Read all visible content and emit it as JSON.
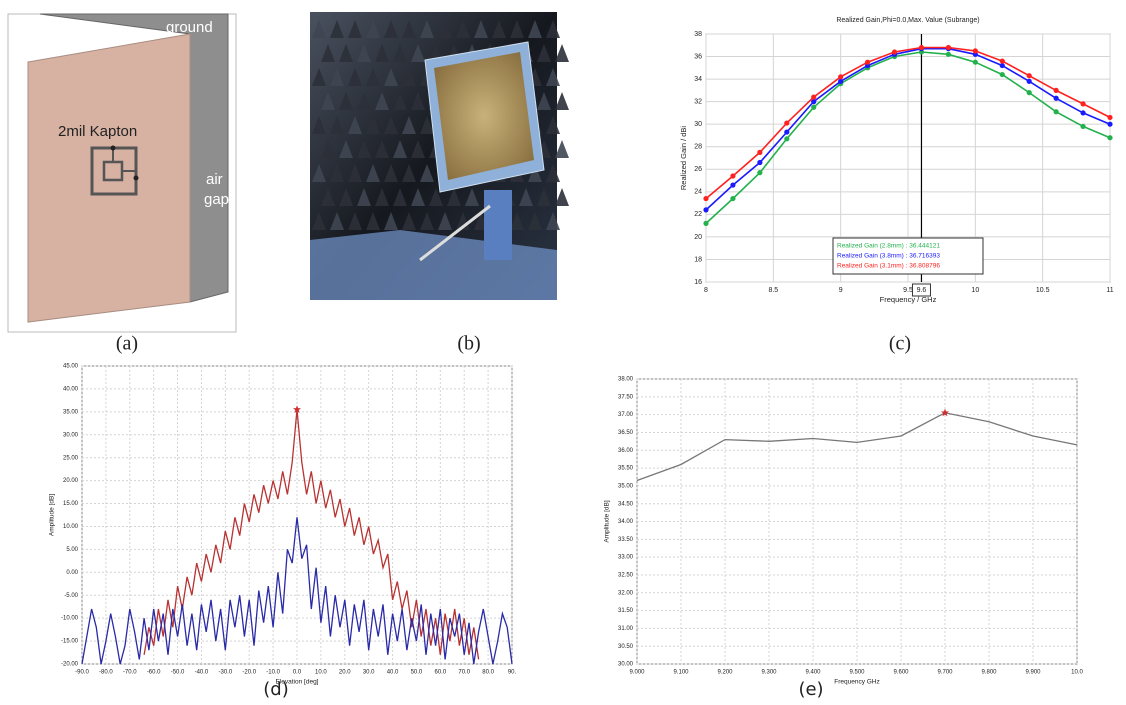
{
  "figure_a": {
    "labels": [
      "ground",
      "2mil Kapton",
      "air",
      "gap"
    ]
  },
  "captions": [
    "(a)",
    "(b)",
    "(c)",
    "(d)",
    "(e)"
  ],
  "chart_data": [
    {
      "type": "line",
      "title": "Realized Gain,Phi=0.0,Max. Value (Subrange)",
      "x_label": "Frequency / GHz",
      "y_label": "Realized Gain / dBi",
      "x": [
        8,
        8.2,
        8.4,
        8.6,
        8.8,
        9,
        9.2,
        9.4,
        9.6,
        9.8,
        10,
        10.2,
        10.4,
        10.6,
        10.8,
        11
      ],
      "series": [
        {
          "name": "Realized Gain (2.8mm) : 36.444121",
          "color": "#22b14c",
          "values": [
            21.2,
            23.4,
            25.7,
            28.7,
            31.5,
            33.6,
            35.0,
            36.0,
            36.4,
            36.2,
            35.5,
            34.4,
            32.8,
            31.1,
            29.8,
            28.8
          ]
        },
        {
          "name": "Realized Gain (3.8mm) : 36.716393",
          "color": "#1a1aff",
          "values": [
            22.4,
            24.6,
            26.6,
            29.3,
            32.0,
            33.8,
            35.2,
            36.2,
            36.7,
            36.7,
            36.2,
            35.2,
            33.8,
            32.3,
            31.0,
            30.0
          ]
        },
        {
          "name": "Realized Gain (3.1mm) : 36.808796",
          "color": "#ff2020",
          "values": [
            23.4,
            25.4,
            27.5,
            30.1,
            32.4,
            34.2,
            35.5,
            36.4,
            36.8,
            36.8,
            36.5,
            35.6,
            34.3,
            33.0,
            31.8,
            30.6
          ]
        }
      ],
      "xlim": [
        8,
        11
      ],
      "xticks": [
        8,
        8.5,
        9,
        9.5,
        10,
        10.5,
        11
      ],
      "ylim": [
        16,
        38
      ],
      "yticks": [
        16,
        18,
        20,
        22,
        24,
        26,
        28,
        30,
        32,
        34,
        36,
        38
      ],
      "grid": true,
      "markers": true,
      "legend": "bottom-center",
      "cursor_x": 9.6
    },
    {
      "type": "line",
      "x_label": "Elevation [deg]",
      "y_label": "Amplitude [dB]",
      "x": [
        -90,
        -88,
        -86,
        -84,
        -82,
        -80,
        -78,
        -76,
        -74,
        -72,
        -70,
        -68,
        -66,
        -64,
        -62,
        -60,
        -58,
        -56,
        -54,
        -52,
        -50,
        -48,
        -46,
        -44,
        -42,
        -40,
        -38,
        -36,
        -34,
        -32,
        -30,
        -28,
        -26,
        -24,
        -22,
        -20,
        -18,
        -16,
        -14,
        -12,
        -10,
        -8,
        -6,
        -4,
        -2,
        0,
        2,
        4,
        6,
        8,
        10,
        12,
        14,
        16,
        18,
        20,
        22,
        24,
        26,
        28,
        30,
        32,
        34,
        36,
        38,
        40,
        42,
        44,
        46,
        48,
        50,
        52,
        54,
        56,
        58,
        60,
        62,
        64,
        66,
        68,
        70,
        72,
        74,
        76,
        78,
        80,
        82,
        84,
        86,
        88,
        90
      ],
      "series": [
        {
          "color": "#b83232",
          "values": [
            null,
            null,
            null,
            null,
            null,
            null,
            null,
            null,
            null,
            null,
            null,
            null,
            null,
            -18,
            -12,
            -16,
            -8,
            -14,
            -6,
            -12,
            -3,
            -8,
            -1,
            -5,
            2,
            -2,
            4,
            0,
            6,
            2,
            9,
            5,
            12,
            8,
            15,
            11,
            17,
            13,
            19,
            15,
            20,
            16,
            22,
            17,
            24,
            35.5,
            24,
            17,
            22,
            15,
            20,
            14,
            18,
            12,
            16,
            10,
            14,
            8,
            12,
            6,
            10,
            4,
            7,
            1,
            4,
            -6,
            -2,
            -8,
            -4,
            -12,
            -6,
            -14,
            -8,
            -16,
            -10,
            -18,
            -9,
            -15,
            -8,
            -16,
            -10,
            -18,
            -12,
            -19,
            null,
            null,
            null,
            null,
            null,
            null,
            null
          ]
        },
        {
          "color": "#2a2aa8",
          "values": [
            -20,
            -14,
            -8,
            -12,
            -20,
            -15,
            -9,
            -14,
            -20,
            -16,
            -8,
            -13,
            -19,
            -10,
            -17,
            -8,
            -15,
            -9,
            -18,
            -8,
            -14,
            -7,
            -16,
            -9,
            -17,
            -7,
            -13,
            -6,
            -15,
            -8,
            -17,
            -6,
            -12,
            -5,
            -14,
            -6,
            -16,
            -4,
            -11,
            -3,
            -12,
            0,
            -9,
            5,
            2,
            12,
            3,
            6,
            -8,
            1,
            -11,
            -3,
            -14,
            -5,
            -12,
            -6,
            -16,
            -7,
            -13,
            -6,
            -17,
            -8,
            -14,
            -7,
            -18,
            -9,
            -15,
            -8,
            -17,
            -10,
            -15,
            -7,
            -18,
            -9,
            -16,
            -8,
            -19,
            -10,
            -14,
            -9,
            -18,
            -11,
            -20,
            -13,
            -8,
            -14,
            -20,
            -15,
            -9,
            -12,
            -20
          ]
        }
      ],
      "xlim": [
        -90,
        90
      ],
      "xticks": [
        {
          "value": -90,
          "label": "-90.0"
        },
        {
          "value": -80,
          "label": "-80.0"
        },
        {
          "value": -70,
          "label": "-70.0"
        },
        {
          "value": -60,
          "label": "-60.0"
        },
        {
          "value": -50,
          "label": "-50.0"
        },
        {
          "value": -40,
          "label": "-40.0"
        },
        {
          "value": -30,
          "label": "-30.0"
        },
        {
          "value": -20,
          "label": "-20.0"
        },
        {
          "value": -10,
          "label": "-10.0"
        },
        {
          "value": 0,
          "label": "0.0"
        },
        {
          "value": 10,
          "label": "10.0"
        },
        {
          "value": 20,
          "label": "20.0"
        },
        {
          "value": 30,
          "label": "30.0"
        },
        {
          "value": 40,
          "label": "40.0"
        },
        {
          "value": 50,
          "label": "50.0"
        },
        {
          "value": 60,
          "label": "60.0"
        },
        {
          "value": 70,
          "label": "70.0"
        },
        {
          "value": 80,
          "label": "80.0"
        },
        {
          "value": 90,
          "label": "90."
        }
      ],
      "ylim": [
        -20,
        45
      ],
      "yticks": [
        {
          "value": -20,
          "label": "-20.00"
        },
        {
          "value": -15,
          "label": "-15.00"
        },
        {
          "value": -10,
          "label": "-10.00"
        },
        {
          "value": -5,
          "label": "-5.00"
        },
        {
          "value": 0,
          "label": "0.00"
        },
        {
          "value": 5,
          "label": "5.00"
        },
        {
          "value": 10,
          "label": "10.00"
        },
        {
          "value": 15,
          "label": "15.00"
        },
        {
          "value": 20,
          "label": "20.00"
        },
        {
          "value": 25,
          "label": "25.00"
        },
        {
          "value": 30,
          "label": "30.00"
        },
        {
          "value": 35,
          "label": "35.00"
        },
        {
          "value": 40,
          "label": "40.00"
        },
        {
          "value": 45,
          "label": "45.00"
        }
      ],
      "grid": true,
      "markers": false,
      "peak_marker": "#d03030"
    },
    {
      "type": "line",
      "x_label": "Frequency GHz",
      "y_label": "Amplitude [dB]",
      "x": [
        9.0,
        9.1,
        9.2,
        9.3,
        9.4,
        9.5,
        9.6,
        9.7,
        9.8,
        9.9,
        10.0
      ],
      "series": [
        {
          "color": "#777777",
          "values": [
            35.15,
            35.6,
            36.3,
            36.25,
            36.33,
            36.22,
            36.4,
            37.05,
            36.8,
            36.4,
            36.15
          ]
        }
      ],
      "xlim": [
        9.0,
        10.0
      ],
      "xticks": [
        {
          "value": 9.0,
          "label": "9.000"
        },
        {
          "value": 9.1,
          "label": "9.100"
        },
        {
          "value": 9.2,
          "label": "9.200"
        },
        {
          "value": 9.3,
          "label": "9.300"
        },
        {
          "value": 9.4,
          "label": "9.400"
        },
        {
          "value": 9.5,
          "label": "9.500"
        },
        {
          "value": 9.6,
          "label": "9.600"
        },
        {
          "value": 9.7,
          "label": "9.700"
        },
        {
          "value": 9.8,
          "label": "9.800"
        },
        {
          "value": 9.9,
          "label": "9.900"
        },
        {
          "value": 10.0,
          "label": "10.0"
        }
      ],
      "ylim": [
        30,
        38
      ],
      "yticks": [
        {
          "value": 30,
          "label": "30.00"
        },
        {
          "value": 30.5,
          "label": "30.50"
        },
        {
          "value": 31,
          "label": "31.00"
        },
        {
          "value": 31.5,
          "label": "31.50"
        },
        {
          "value": 32,
          "label": "32.00"
        },
        {
          "value": 32.5,
          "label": "32.50"
        },
        {
          "value": 33,
          "label": "33.00"
        },
        {
          "value": 33.5,
          "label": "33.50"
        },
        {
          "value": 34,
          "label": "34.00"
        },
        {
          "value": 34.5,
          "label": "34.50"
        },
        {
          "value": 35,
          "label": "35.00"
        },
        {
          "value": 35.5,
          "label": "35.50"
        },
        {
          "value": 36,
          "label": "36.00"
        },
        {
          "value": 36.5,
          "label": "36.50"
        },
        {
          "value": 37,
          "label": "37.00"
        },
        {
          "value": 37.5,
          "label": "37.50"
        },
        {
          "value": 38,
          "label": "38.00"
        }
      ],
      "grid": true,
      "markers": false,
      "peak_marker": "#d03030"
    }
  ]
}
